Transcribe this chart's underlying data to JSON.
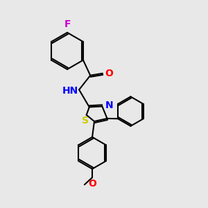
{
  "background_color": "#e8e8e8",
  "bond_color": "#000000",
  "bond_width": 1.5,
  "atom_colors": {
    "F": "#cc00cc",
    "O": "#ff0000",
    "N": "#0000ff",
    "S": "#cccc00"
  },
  "font_size": 10,
  "fig_size": [
    3.0,
    3.0
  ],
  "dpi": 100
}
